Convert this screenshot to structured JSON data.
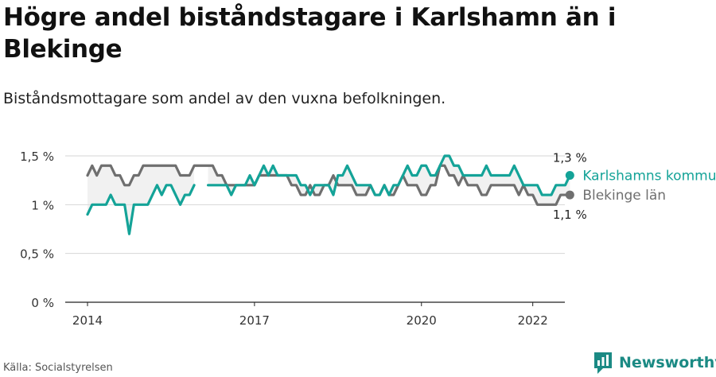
{
  "title": "Högre andel biståndstagare i Karlshamn än i Blekinge",
  "subtitle": "Biståndsmottagare som andel av den vuxna befolkningen.",
  "source": "Källa: Socialstyrelsen",
  "brand": "Newsworthy",
  "colors": {
    "karlshamn": "#14a398",
    "blekinge": "#6f6f6f",
    "band": "#f1f1f1",
    "grid": "#d6d6d6",
    "brand": "#1b8a84"
  },
  "chart_data": {
    "type": "line",
    "x_unit": "month",
    "x_start": "2014-01",
    "xlim": [
      "2014-01",
      "2023-01"
    ],
    "x_ticks": [
      {
        "date": "2014-01",
        "label": "2014"
      },
      {
        "date": "2017-01",
        "label": "2017"
      },
      {
        "date": "2020-01",
        "label": "2020"
      },
      {
        "date": "2022-01",
        "label": "2022"
      }
    ],
    "ylim": [
      0,
      1.5
    ],
    "y_ticks": [
      {
        "value": 0,
        "label": "0 %"
      },
      {
        "value": 0.5,
        "label": "0,5 %"
      },
      {
        "value": 1,
        "label": "1 %"
      },
      {
        "value": 1.5,
        "label": "1,5 %"
      }
    ],
    "series": [
      {
        "name": "Karlshamns kommun",
        "end_label": "1,3 %",
        "values": [
          0.9,
          1.0,
          1.0,
          1.0,
          1.0,
          1.1,
          1.0,
          1.0,
          1.0,
          0.7,
          1.0,
          1.0,
          1.0,
          1.0,
          1.1,
          1.2,
          1.1,
          1.2,
          1.2,
          1.1,
          1.0,
          1.1,
          1.1,
          1.2,
          null,
          null,
          1.2,
          1.2,
          1.2,
          1.2,
          1.2,
          1.1,
          1.2,
          1.2,
          1.2,
          1.3,
          1.2,
          1.3,
          1.4,
          1.3,
          1.4,
          1.3,
          1.3,
          1.3,
          1.3,
          1.3,
          1.2,
          1.2,
          1.1,
          1.2,
          1.2,
          1.2,
          1.2,
          1.1,
          1.3,
          1.3,
          1.4,
          1.3,
          1.2,
          1.2,
          1.2,
          1.2,
          1.1,
          1.1,
          1.2,
          1.1,
          1.2,
          1.2,
          1.3,
          1.4,
          1.3,
          1.3,
          1.4,
          1.4,
          1.3,
          1.3,
          1.4,
          1.5,
          1.5,
          1.4,
          1.4,
          1.3,
          1.3,
          1.3,
          1.3,
          1.3,
          1.4,
          1.3,
          1.3,
          1.3,
          1.3,
          1.3,
          1.4,
          1.3,
          1.2,
          1.2,
          1.2,
          1.2,
          1.1,
          1.1,
          1.1,
          1.2,
          1.2,
          1.2,
          1.3
        ],
        "color": "#14a398"
      },
      {
        "name": "Blekinge län",
        "end_label": "1,1 %",
        "values": [
          1.3,
          1.4,
          1.3,
          1.4,
          1.4,
          1.4,
          1.3,
          1.3,
          1.2,
          1.2,
          1.3,
          1.3,
          1.4,
          1.4,
          1.4,
          1.4,
          1.4,
          1.4,
          1.4,
          1.4,
          1.3,
          1.3,
          1.3,
          1.4,
          1.4,
          1.4,
          1.4,
          1.4,
          1.3,
          1.3,
          1.2,
          1.2,
          1.2,
          1.2,
          1.2,
          1.2,
          1.2,
          1.3,
          1.3,
          1.3,
          1.3,
          1.3,
          1.3,
          1.3,
          1.2,
          1.2,
          1.1,
          1.1,
          1.2,
          1.1,
          1.1,
          1.2,
          1.2,
          1.3,
          1.2,
          1.2,
          1.2,
          1.2,
          1.1,
          1.1,
          1.1,
          1.2,
          1.1,
          1.1,
          1.2,
          1.1,
          1.1,
          1.2,
          1.3,
          1.2,
          1.2,
          1.2,
          1.1,
          1.1,
          1.2,
          1.2,
          1.4,
          1.4,
          1.3,
          1.3,
          1.2,
          1.3,
          1.2,
          1.2,
          1.2,
          1.1,
          1.1,
          1.2,
          1.2,
          1.2,
          1.2,
          1.2,
          1.2,
          1.1,
          1.2,
          1.1,
          1.1,
          1.0,
          1.0,
          1.0,
          1.0,
          1.0,
          1.1,
          1.1,
          1.1
        ],
        "color": "#6f6f6f"
      }
    ]
  }
}
